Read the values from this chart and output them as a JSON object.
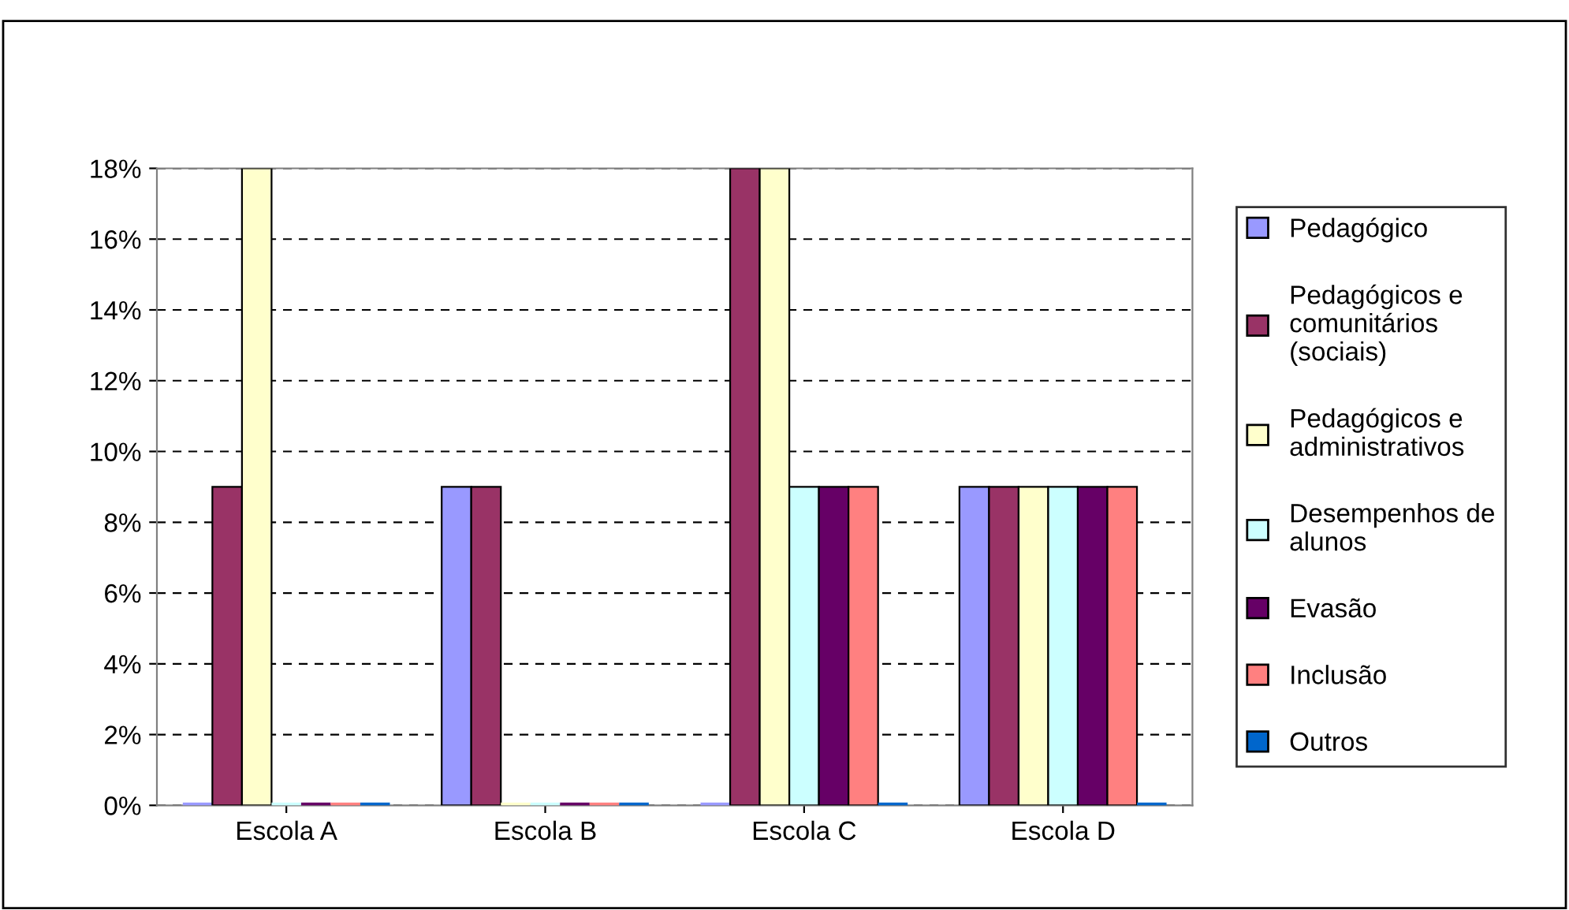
{
  "chart_data": {
    "type": "bar",
    "categories": [
      "Escola A",
      "Escola B",
      "Escola C",
      "Escola D"
    ],
    "series": [
      {
        "name": "Pedagógico",
        "color": "#9999ff",
        "values": [
          0,
          9,
          0,
          9
        ]
      },
      {
        "name": "Pedagógicos e comunitários (sociais)",
        "color": "#993366",
        "values": [
          9,
          9,
          18,
          9
        ]
      },
      {
        "name": "Pedagógicos e administrativos",
        "color": "#ffffcc",
        "values": [
          18,
          0,
          18,
          9
        ]
      },
      {
        "name": "Desempenhos de alunos",
        "color": "#ccffff",
        "values": [
          0,
          0,
          9,
          9
        ]
      },
      {
        "name": "Evasão",
        "color": "#660066",
        "values": [
          0,
          0,
          9,
          9
        ]
      },
      {
        "name": "Inclusão",
        "color": "#ff8080",
        "values": [
          0,
          0,
          9,
          9
        ]
      },
      {
        "name": "Outros",
        "color": "#0066cc",
        "values": [
          0,
          0,
          0,
          0
        ]
      }
    ],
    "ylim": [
      0,
      18
    ],
    "yticks": [
      {
        "value": 0,
        "label": "0%"
      },
      {
        "value": 2,
        "label": "2%"
      },
      {
        "value": 4,
        "label": "4%"
      },
      {
        "value": 6,
        "label": "6%"
      },
      {
        "value": 8,
        "label": "8%"
      },
      {
        "value": 10,
        "label": "10%"
      },
      {
        "value": 12,
        "label": "12%"
      },
      {
        "value": 14,
        "label": "14%"
      },
      {
        "value": 16,
        "label": "16%"
      },
      {
        "value": 18,
        "label": "18%"
      }
    ],
    "grid": "y",
    "legend": "right"
  }
}
